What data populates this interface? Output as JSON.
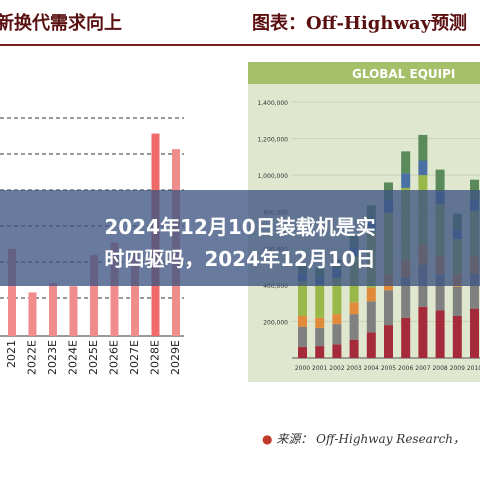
{
  "overlay": {
    "title_line1": "2024年12月10日装载机是实",
    "title_line2": "时四驱吗，2024年12月10日"
  },
  "left_panel": {
    "header": "新换代需求向上"
  },
  "right_panel": {
    "header": "图表：Off-Highway预测",
    "chart_title": "GLOBAL EQUIPI",
    "source_prefix": "来源：",
    "source_text": "Off-Highway Research，"
  },
  "colors": {
    "header_text": "#5a1010",
    "bar_pink": "#f08c8c",
    "bar_pink_highlight": "#f06a6a",
    "chart_bg": "#dfe8cf",
    "chart_title_bar": "#a6c06a",
    "overlay": "#3e5482"
  },
  "chart_data": [
    {
      "type": "bar",
      "categories": [
        "2021",
        "2022E",
        "2023E",
        "2024E",
        "2025E",
        "2026E",
        "2027E",
        "2028E",
        "2029E"
      ],
      "values": [
        28,
        14,
        17,
        16,
        26,
        30,
        27,
        65,
        60
      ],
      "note": "values are estimated relative bar heights; axis tick labels are not visible",
      "grid": "horizontal dashed"
    },
    {
      "type": "bar",
      "stacked": true,
      "title": "GLOBAL EQUIPI",
      "categories": [
        "2000",
        "2001",
        "2002",
        "2003",
        "2004",
        "2005",
        "2006",
        "2007",
        "2008",
        "2009",
        "2010"
      ],
      "y_ticks": [
        "200,000",
        "400,000",
        "600,000",
        "800,000",
        "1,000,000",
        "1,200,000",
        "1,400,000"
      ],
      "ylim": [
        0,
        1400000
      ],
      "series": [
        {
          "color": "#a52a3a",
          "values": [
            60000,
            65000,
            75000,
            100000,
            140000,
            180000,
            220000,
            280000,
            260000,
            230000,
            270000
          ]
        },
        {
          "color": "#808080",
          "values": [
            110000,
            100000,
            110000,
            140000,
            170000,
            190000,
            220000,
            230000,
            200000,
            160000,
            190000
          ]
        },
        {
          "color": "#e08a3a",
          "values": [
            60000,
            55000,
            55000,
            65000,
            75000,
            85000,
            100000,
            110000,
            100000,
            70000,
            95000
          ]
        },
        {
          "color": "#9ab84a",
          "values": [
            190000,
            180000,
            200000,
            250000,
            310000,
            340000,
            390000,
            380000,
            280000,
            190000,
            250000
          ]
        },
        {
          "color": "#4a6fa5",
          "values": [
            40000,
            40000,
            45000,
            50000,
            60000,
            70000,
            80000,
            80000,
            70000,
            50000,
            60000
          ]
        },
        {
          "color": "#5a8a5a",
          "values": [
            50000,
            50000,
            55000,
            65000,
            80000,
            95000,
            120000,
            140000,
            120000,
            90000,
            110000
          ]
        }
      ]
    }
  ]
}
